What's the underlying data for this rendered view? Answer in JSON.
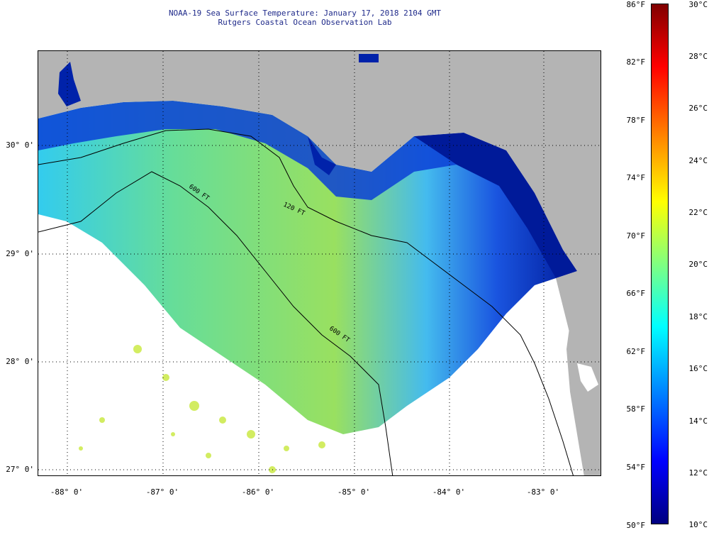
{
  "title": {
    "line1": "NOAA-19 Sea Surface Temperature:  January 17, 2018 2104 GMT",
    "line2": "Rutgers Coastal Ocean Observation Lab"
  },
  "map": {
    "lat_labels": [
      "30° 0'",
      "29° 0'",
      "28° 0'",
      "27° 0'"
    ],
    "lon_labels": [
      "-88° 0'",
      "-87° 0'",
      "-86° 0'",
      "-85° 0'",
      "-84° 0'",
      "-83° 0'"
    ],
    "contour_labels": [
      "600 FT",
      "120 FT",
      "600 FT"
    ],
    "colors": {
      "land": "#b4b4b4",
      "no_data": "#ffffff"
    }
  },
  "colorbar": {
    "fahrenheit_labels": [
      "86°F",
      "82°F",
      "78°F",
      "74°F",
      "70°F",
      "66°F",
      "62°F",
      "58°F",
      "54°F",
      "50°F"
    ],
    "celsius_labels": [
      "30°C",
      "28°C",
      "26°C",
      "24°C",
      "22°C",
      "20°C",
      "18°C",
      "16°C",
      "14°C",
      "12°C",
      "10°C"
    ],
    "celsius_min": 10,
    "celsius_max": 30,
    "colormap": "jet"
  }
}
